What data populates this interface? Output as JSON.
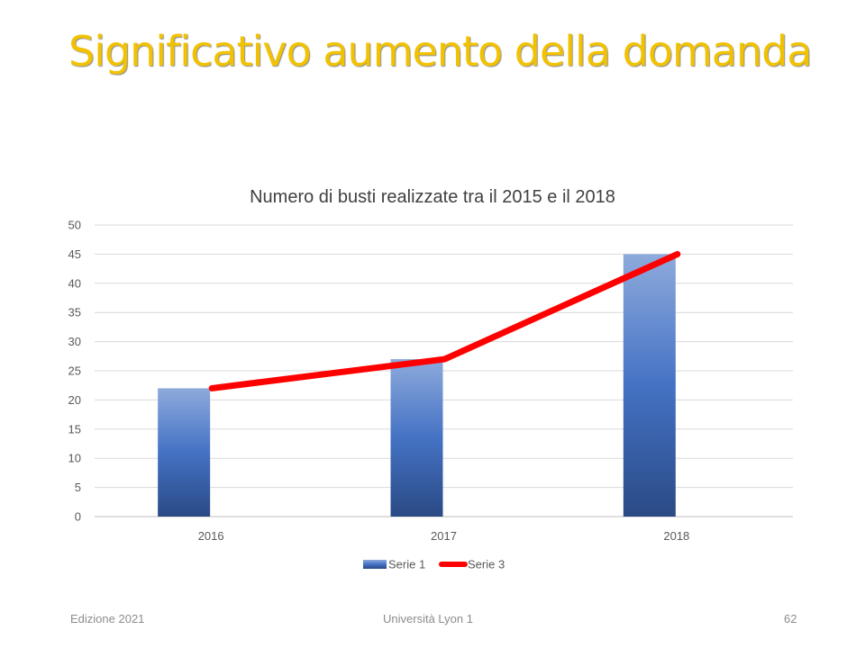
{
  "slide": {
    "title": "Significativo aumento della domanda",
    "footer_left": "Edizione 2021",
    "footer_center": "Università Lyon 1",
    "footer_right": "62"
  },
  "chart_data": {
    "type": "bar",
    "title": "Numero di busti realizzate tra il 2015 e il 2018",
    "categories": [
      "2016",
      "2017",
      "2018"
    ],
    "ylim": [
      0,
      50
    ],
    "yticks": [
      0,
      5,
      10,
      15,
      20,
      25,
      30,
      35,
      40,
      45,
      50
    ],
    "grid": true,
    "legend_position": "bottom",
    "series": [
      {
        "name": "Serie 1",
        "type": "bar",
        "values": [
          22,
          27,
          45
        ],
        "color": "#4472c4"
      },
      {
        "name": "Serie 3",
        "type": "line",
        "values": [
          22,
          27,
          45
        ],
        "color": "#ff0000"
      }
    ]
  }
}
